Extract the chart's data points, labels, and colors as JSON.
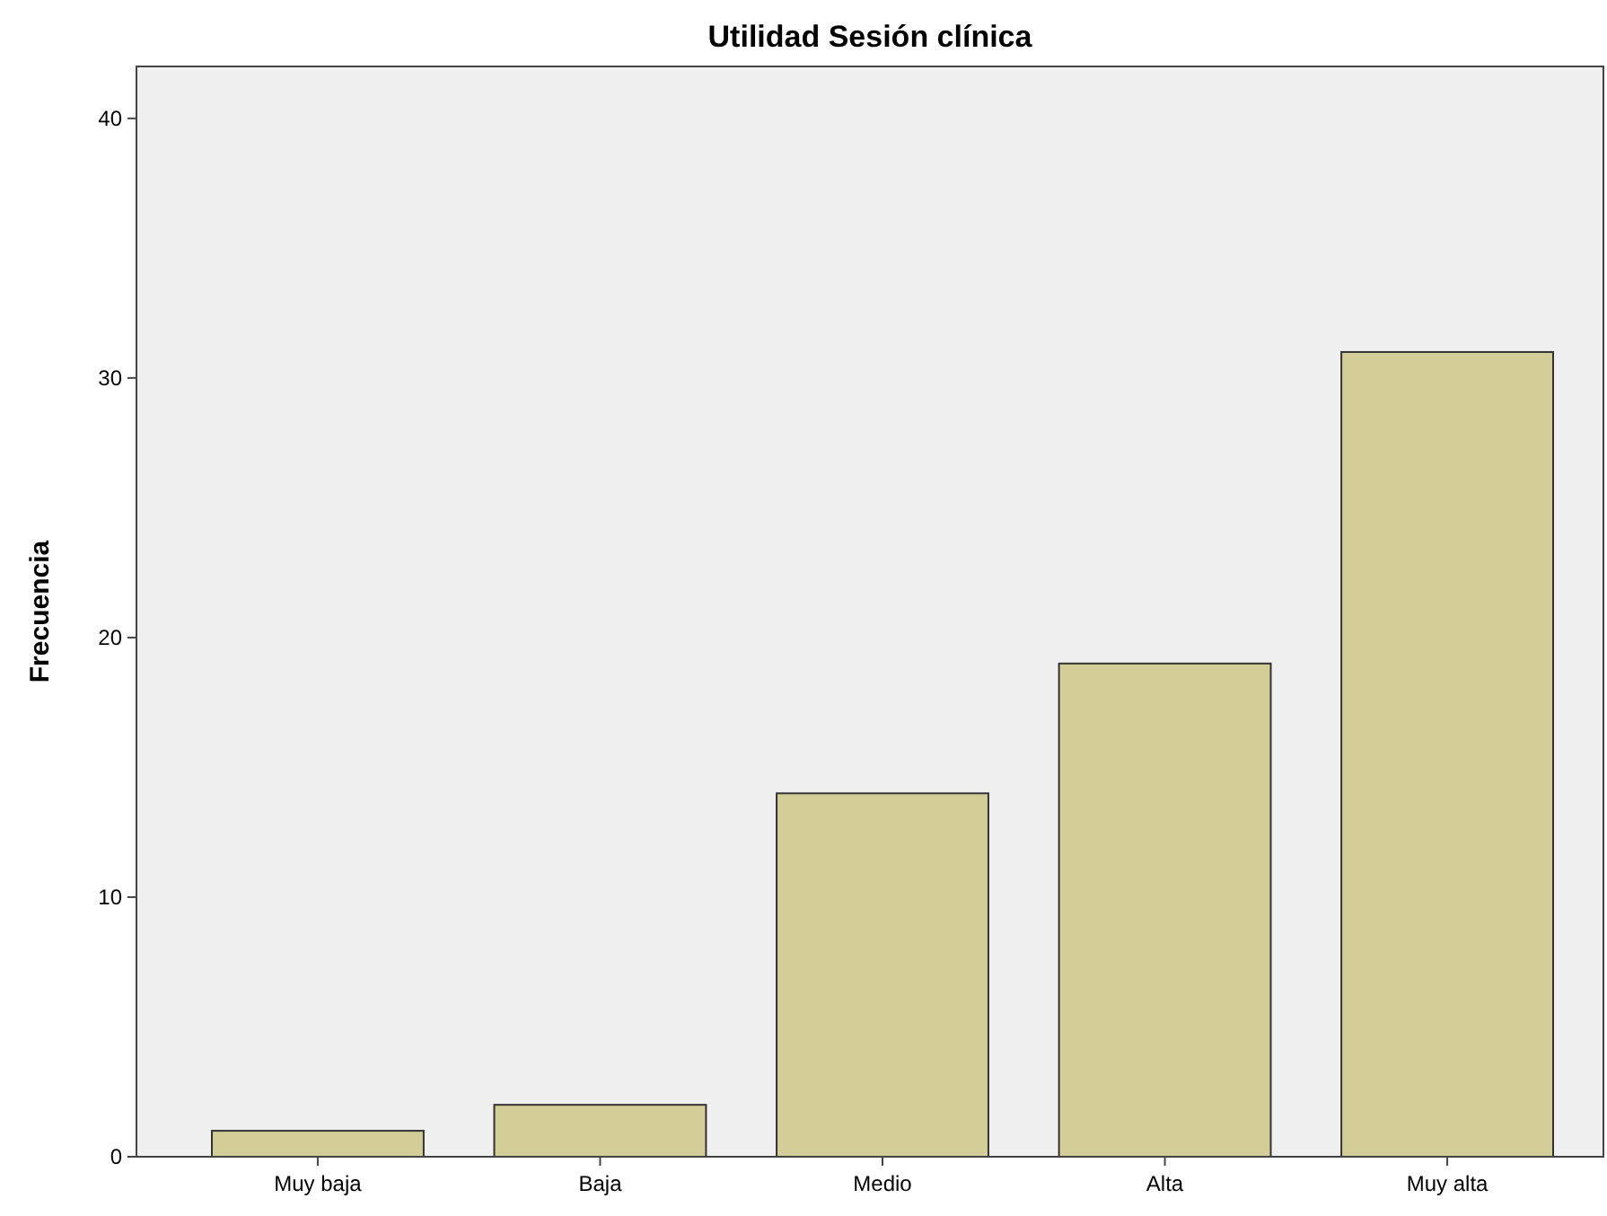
{
  "chart_data": {
    "type": "bar",
    "title": "Utilidad Sesión clínica",
    "ylabel": "Frecuencia",
    "categories": [
      "Muy baja",
      "Baja",
      "Medio",
      "Alta",
      "Muy alta"
    ],
    "values": [
      1,
      2,
      14,
      19,
      31
    ],
    "color": "#d3ce97",
    "ylim": [
      0,
      42
    ],
    "yticks": [
      0,
      10,
      20,
      30,
      40
    ],
    "grid": false
  }
}
